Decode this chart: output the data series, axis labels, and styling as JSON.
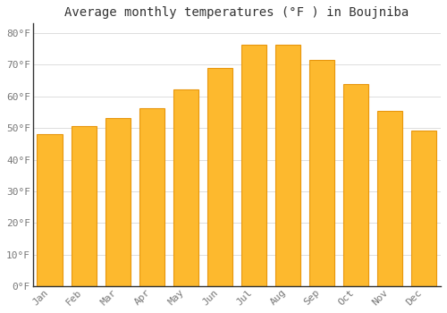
{
  "title": "Average monthly temperatures (°F ) in Boujniba",
  "months": [
    "Jan",
    "Feb",
    "Mar",
    "Apr",
    "May",
    "Jun",
    "Jul",
    "Aug",
    "Sep",
    "Oct",
    "Nov",
    "Dec"
  ],
  "values": [
    48.2,
    50.7,
    53.2,
    56.3,
    62.2,
    69.1,
    76.3,
    76.3,
    71.6,
    64.0,
    55.4,
    49.3
  ],
  "bar_color": "#FDB92E",
  "bar_edge_color": "#E8960C",
  "background_color": "#FFFFFF",
  "plot_bg_color": "#FFFFFF",
  "grid_color": "#DDDDDD",
  "ylabel_color": "#777777",
  "xlabel_color": "#777777",
  "title_color": "#333333",
  "axis_color": "#333333",
  "ylim": [
    0,
    83
  ],
  "yticks": [
    0,
    10,
    20,
    30,
    40,
    50,
    60,
    70,
    80
  ],
  "title_fontsize": 10,
  "tick_fontsize": 8,
  "font_family": "monospace",
  "bar_width": 0.75
}
